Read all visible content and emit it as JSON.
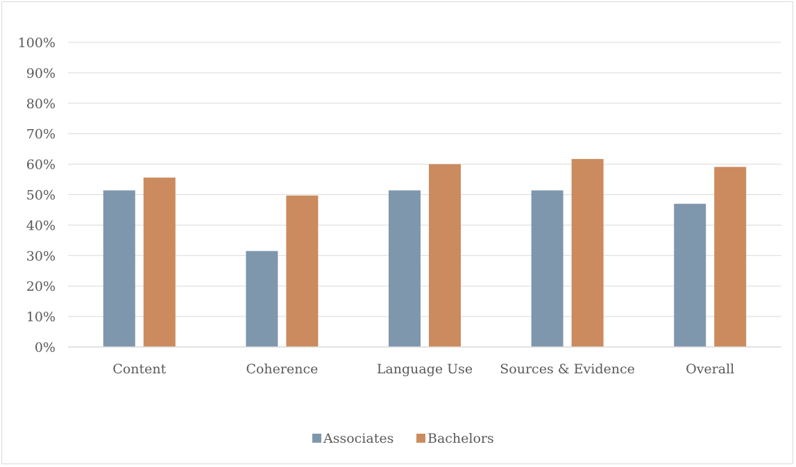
{
  "chart_data": {
    "type": "bar",
    "categories": [
      "Content",
      "Coherence",
      "Language Use",
      "Sources & Evidence",
      "Overall"
    ],
    "series": [
      {
        "name": "Associates",
        "values": [
          0.514,
          0.315,
          0.514,
          0.514,
          0.47
        ],
        "color": "#7f97ad"
      },
      {
        "name": "Bachelors",
        "values": [
          0.556,
          0.497,
          0.6,
          0.617,
          0.591
        ],
        "color": "#cb8b5e"
      }
    ],
    "ylim": [
      0,
      1
    ],
    "yticks": [
      "0%",
      "10%",
      "20%",
      "30%",
      "40%",
      "50%",
      "60%",
      "70%",
      "80%",
      "90%",
      "100%"
    ],
    "grid": true,
    "legend_position": "bottom"
  }
}
